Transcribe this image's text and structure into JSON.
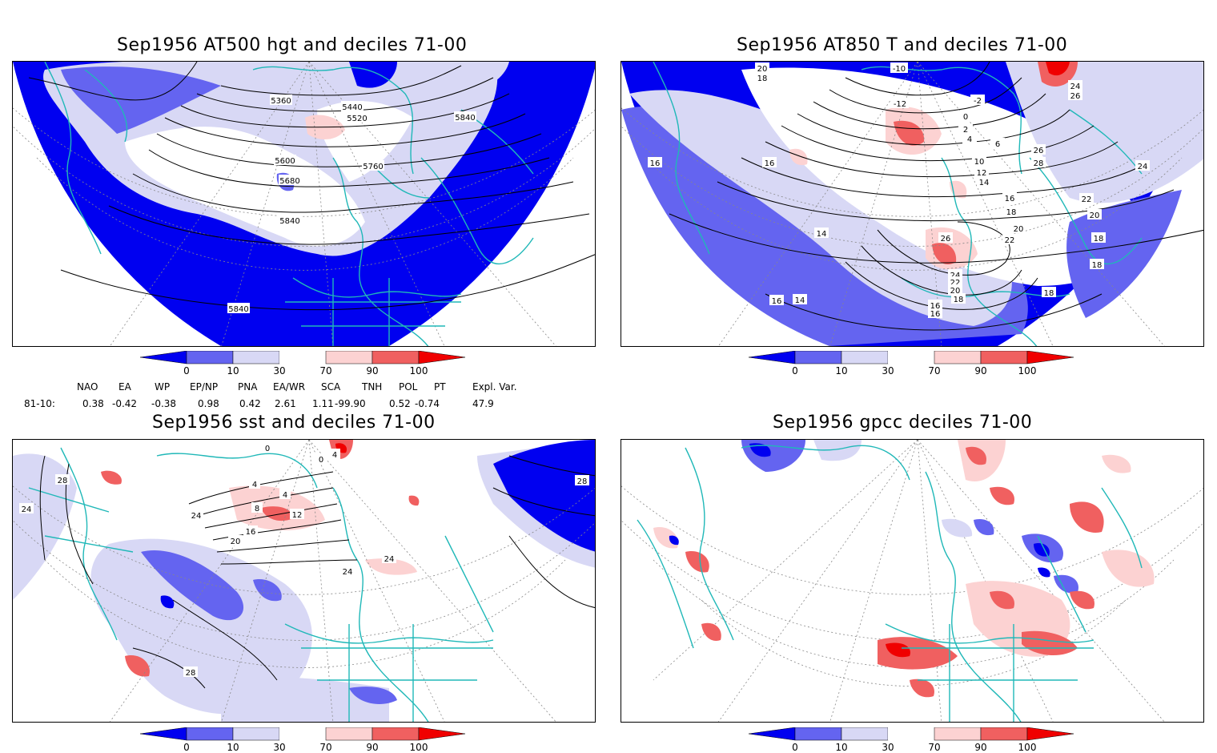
{
  "colors": {
    "dark_blue": "#0000f0",
    "mid_blue": "#6464f0",
    "light_blue": "#d8d8f5",
    "light_red": "#fcd2d2",
    "mid_red": "#f06060",
    "dark_red": "#f00000",
    "coast": "#20b8b8"
  },
  "colorbar": {
    "ticks": [
      "0",
      "10",
      "30",
      "70",
      "90",
      "100"
    ]
  },
  "panels": [
    {
      "title": "Sep1956 AT500 hgt and deciles 71-00",
      "contour_labels": [
        "5360",
        "5440",
        "5520",
        "5840",
        "5600",
        "5760",
        "5680",
        "5840",
        "5840"
      ]
    },
    {
      "title": "Sep1956 AT850 T and deciles 71-00",
      "contour_labels": [
        "20",
        "18",
        "-10",
        "24",
        "26",
        "-12",
        "-2",
        "0",
        "2",
        "4",
        "6",
        "16",
        "16",
        "26",
        "28",
        "10",
        "12",
        "14",
        "16",
        "18",
        "20",
        "22",
        "24",
        "14",
        "26",
        "22",
        "20",
        "18",
        "16",
        "14",
        "18",
        "18",
        "16",
        "24",
        "22",
        "20",
        "18",
        "16"
      ]
    },
    {
      "title": "Sep1956 sst and deciles 71-00",
      "contour_labels": [
        "28",
        "24",
        "28",
        "0",
        "4",
        "4",
        "8",
        "12",
        "16",
        "20",
        "24",
        "24",
        "24",
        "28",
        "0",
        "4"
      ]
    },
    {
      "title": "Sep1956 gpcc deciles 71-00",
      "contour_labels": []
    }
  ],
  "indices": {
    "headers": [
      "NAO",
      "EA",
      "WP",
      "EP/NP",
      "PNA",
      "EA/WR",
      "SCA",
      "TNH",
      "POL",
      "PT",
      "Expl. Var."
    ],
    "row_label": "81-10:",
    "values": [
      "0.38",
      "-0.42",
      "-0.38",
      "0.98",
      "0.42",
      "2.61",
      "1.11",
      "-99.90",
      "0.52",
      "-0.74",
      "47.9"
    ]
  }
}
